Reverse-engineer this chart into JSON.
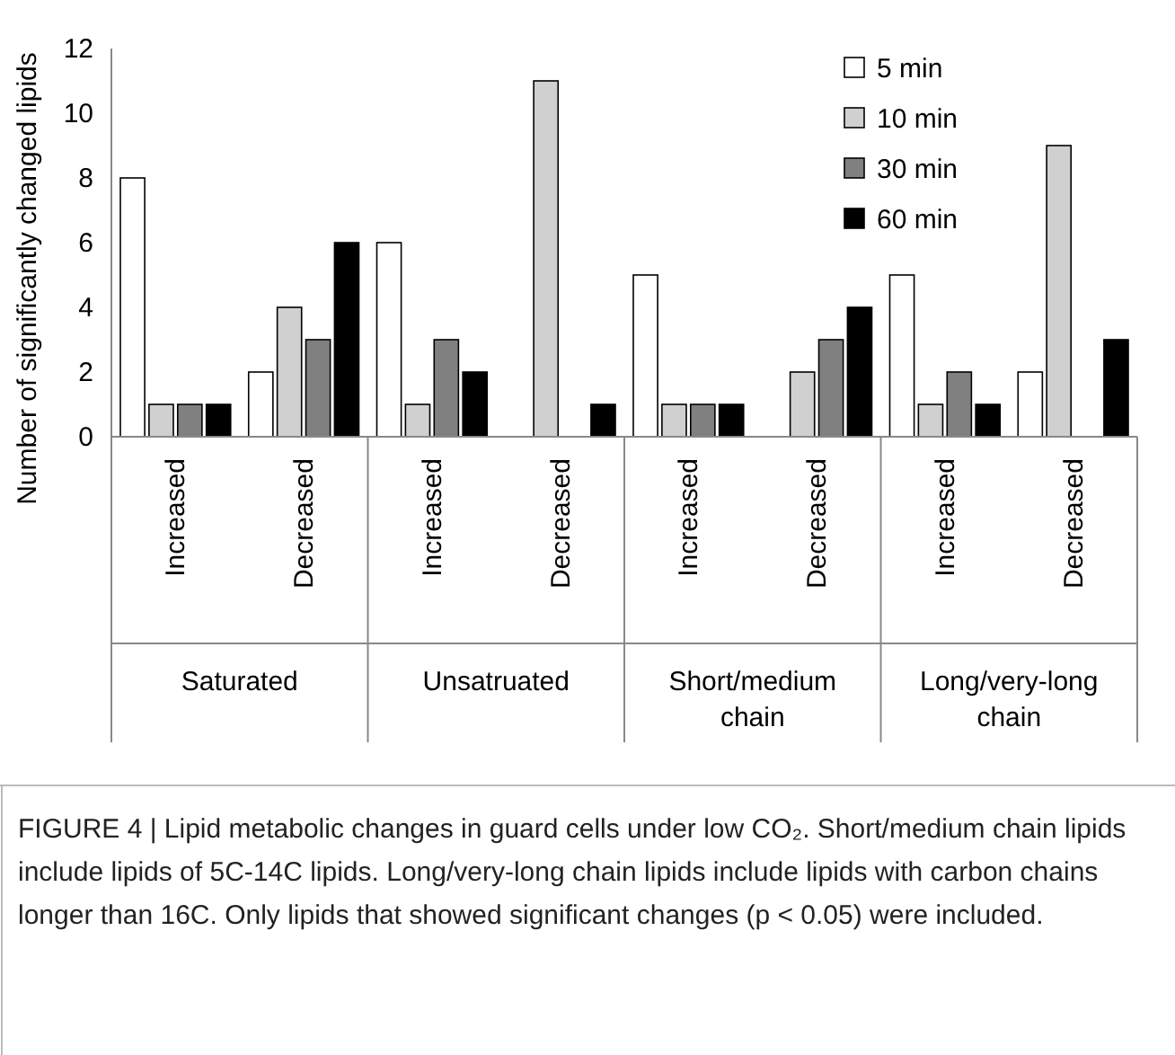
{
  "chart_data": {
    "type": "bar",
    "ylabel": "Number of significantly changed lipids",
    "categories": [
      "Increased",
      "Decreased",
      "Increased",
      "Decreased",
      "Increased",
      "Decreased",
      "Increased",
      "Decreased"
    ],
    "series": [
      {
        "name": "5 min",
        "color": "#ffffff",
        "values": [
          8,
          2,
          6,
          0,
          5,
          0,
          5,
          2
        ]
      },
      {
        "name": "10 min",
        "color": "#d0d0d0",
        "values": [
          1,
          4,
          1,
          11,
          1,
          2,
          1,
          9
        ]
      },
      {
        "name": "30 min",
        "color": "#808080",
        "values": [
          1,
          3,
          3,
          0,
          1,
          3,
          2,
          0
        ]
      },
      {
        "name": "60 min",
        "color": "#000000",
        "values": [
          1,
          6,
          2,
          1,
          1,
          4,
          1,
          3
        ]
      }
    ],
    "ylim": [
      0,
      12
    ],
    "yticks": [
      0,
      2,
      4,
      6,
      8,
      10,
      12
    ],
    "legend": "top right",
    "grid": false,
    "annotations": [
      "Saturated",
      "Unsatruated",
      "Short/medium chain",
      "Long/very-long chain",
      "FIGURE 4 | Lipid metabolic changes in guard cells under low CO₂. Short/medium chain lipids include lipids of 5C-14C lipids. Long/very-long chain lipids include lipids with carbon chains longer than 16C. Only lipids that showed significant changes (p < 0.05) were included."
    ]
  }
}
